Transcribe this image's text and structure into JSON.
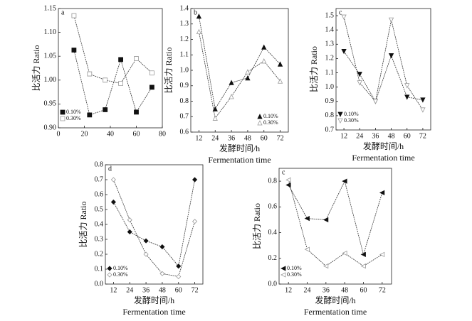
{
  "chart_data": [
    {
      "type": "line",
      "annotation": "a",
      "ylabel": "比活力 Ratio",
      "x": [
        12,
        24,
        36,
        48,
        60,
        72
      ],
      "xlim": [
        0,
        80
      ],
      "xticks": [
        0,
        20,
        40,
        60,
        80
      ],
      "ylim": [
        0.9,
        1.15
      ],
      "yticks": [
        {
          "value": 0.9,
          "label": "0.90"
        },
        0.95,
        {
          "value": 1.0,
          "label": "1.00"
        },
        1.05,
        {
          "value": 1.1,
          "label": "1.10"
        },
        1.15
      ],
      "legend": "lower left",
      "series": [
        {
          "name": "0.10%",
          "color": "#111",
          "marker": "square",
          "filled": true,
          "values": [
            1.063,
            0.927,
            0.938,
            1.043,
            0.933,
            0.985
          ]
        },
        {
          "name": "0.30%",
          "color": "#999",
          "marker": "square",
          "filled": false,
          "values": [
            1.135,
            1.013,
            1.0,
            0.993,
            1.045,
            1.015
          ]
        }
      ]
    },
    {
      "type": "line",
      "annotation": "b",
      "ylabel": "比活力 Ratio",
      "xlabel": "发酵时间/h",
      "xlabel2": "Fermentation time",
      "x": [
        12,
        24,
        36,
        48,
        60,
        72
      ],
      "xlim": [
        6,
        78
      ],
      "xticks": [
        12,
        24,
        36,
        48,
        60,
        72
      ],
      "ylim": [
        0.6,
        1.4
      ],
      "yticks": [
        0.6,
        0.7,
        0.8,
        0.9,
        {
          "value": 1.0,
          "label": "1.0"
        },
        1.1,
        1.2,
        1.3,
        1.4
      ],
      "legend": "lower right",
      "series": [
        {
          "name": "0.10%",
          "color": "#111",
          "marker": "triangle-up",
          "filled": true,
          "values": [
            1.35,
            0.75,
            0.92,
            0.95,
            1.15,
            1.04
          ]
        },
        {
          "name": "0.30%",
          "color": "#999",
          "marker": "triangle-up",
          "filled": false,
          "values": [
            1.25,
            0.69,
            0.83,
            0.99,
            1.06,
            0.93
          ]
        }
      ]
    },
    {
      "type": "line",
      "annotation": "c",
      "ylabel": "比活力 Ratio",
      "xlabel": "发酵时间/h",
      "xlabel2": "Fermentation time",
      "x": [
        12,
        24,
        36,
        48,
        60,
        72
      ],
      "xlim": [
        6,
        78
      ],
      "xticks": [
        12,
        24,
        36,
        48,
        60,
        72
      ],
      "ylim": [
        0.7,
        1.55
      ],
      "yticks": [
        0.7,
        0.8,
        0.9,
        {
          "value": 1.0,
          "label": "1.0"
        },
        1.1,
        1.2,
        1.3,
        1.4,
        1.5
      ],
      "legend": "lower left",
      "series": [
        {
          "name": "0.10%",
          "color": "#111",
          "marker": "triangle-down",
          "filled": true,
          "values": [
            1.25,
            1.09,
            0.9,
            1.22,
            0.93,
            0.91
          ]
        },
        {
          "name": "0.30%",
          "color": "#999",
          "marker": "triangle-down",
          "filled": false,
          "values": [
            1.49,
            1.03,
            0.9,
            1.47,
            1.01,
            0.84
          ]
        }
      ]
    },
    {
      "type": "line",
      "annotation": "d",
      "ylabel": "比活力 Ratio",
      "xlabel": "发酵时间/h",
      "xlabel2": "Fermentation time",
      "x": [
        12,
        24,
        36,
        48,
        60,
        72
      ],
      "xlim": [
        6,
        78
      ],
      "xticks": [
        12,
        24,
        36,
        48,
        60,
        72
      ],
      "ylim": [
        0.0,
        0.8
      ],
      "yticks": [
        {
          "value": 0.0,
          "label": "0.0"
        },
        0.1,
        0.2,
        0.3,
        0.4,
        0.5,
        0.6,
        0.7,
        0.8
      ],
      "legend": "lower left",
      "series": [
        {
          "name": "0.10%",
          "color": "#111",
          "marker": "diamond",
          "filled": true,
          "values": [
            0.55,
            0.35,
            0.29,
            0.25,
            0.12,
            0.7
          ]
        },
        {
          "name": "0.30%",
          "color": "#999",
          "marker": "diamond",
          "filled": false,
          "values": [
            0.7,
            0.43,
            0.2,
            0.07,
            0.05,
            0.42
          ]
        }
      ]
    },
    {
      "type": "line",
      "annotation": "c",
      "ylabel": "比活力 Ratio",
      "xlabel": "发酵时间/h",
      "xlabel2": "Fermentation time",
      "x": [
        12,
        24,
        36,
        48,
        60,
        72
      ],
      "xlim": [
        6,
        78
      ],
      "xticks": [
        12,
        24,
        36,
        48,
        60,
        72
      ],
      "ylim": [
        0.0,
        0.9
      ],
      "yticks": [
        {
          "value": 0.0,
          "label": "0.0"
        },
        0.2,
        0.4,
        0.6,
        0.8
      ],
      "legend": "lower left",
      "series": [
        {
          "name": "0.10%",
          "color": "#111",
          "marker": "triangle-left",
          "filled": true,
          "values": [
            0.77,
            0.51,
            0.5,
            0.8,
            0.23,
            0.71
          ]
        },
        {
          "name": "0.30%",
          "color": "#999",
          "marker": "triangle-left",
          "filled": false,
          "values": [
            0.81,
            0.27,
            0.14,
            0.24,
            0.14,
            0.23
          ]
        }
      ]
    }
  ]
}
